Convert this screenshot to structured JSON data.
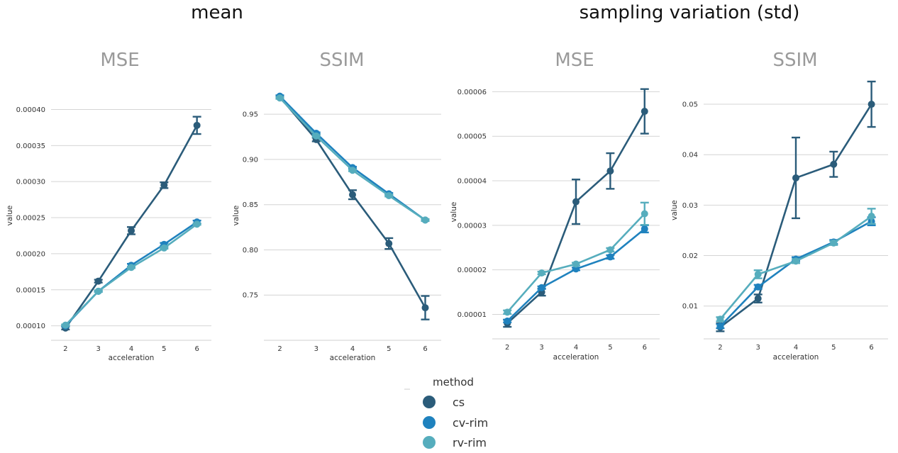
{
  "figure": {
    "group_titles": [
      "mean",
      "sampling variation (std)"
    ]
  },
  "legend": {
    "title": "method",
    "entries": [
      {
        "label": "cs",
        "color": "#2b5c7a"
      },
      {
        "label": "cv-rim",
        "color": "#1f82be"
      },
      {
        "label": "rv-rim",
        "color": "#56adbd"
      }
    ]
  },
  "chart_data": [
    {
      "type": "line",
      "title": "MSE",
      "group": "mean",
      "xlabel": "acceleration",
      "ylabel": "value",
      "categories": [
        2,
        3,
        4,
        5,
        6
      ],
      "ylim": [
        8e-05,
        0.000426
      ],
      "yticks": [
        "0.00010",
        "0.00015",
        "0.00020",
        "0.00025",
        "0.00030",
        "0.00035",
        "0.00040"
      ],
      "series": [
        {
          "name": "cs",
          "color": "#2b5c7a",
          "values": [
            9.7e-05,
            0.000162,
            0.000232,
            0.000295,
            0.000378
          ],
          "err": [
            2e-06,
            2e-06,
            5e-06,
            4e-06,
            1.2e-05
          ]
        },
        {
          "name": "cv-rim",
          "color": "#1f82be",
          "values": [
            0.0001,
            0.000148,
            0.000184,
            0.000213,
            0.000244
          ],
          "err": [
            1e-06,
            1e-06,
            2e-06,
            2e-06,
            2e-06
          ]
        },
        {
          "name": "rv-rim",
          "color": "#56adbd",
          "values": [
            0.000101,
            0.000148,
            0.000181,
            0.000208,
            0.000241
          ],
          "err": [
            1e-06,
            1e-06,
            1e-06,
            1e-06,
            1e-06
          ]
        }
      ]
    },
    {
      "type": "line",
      "title": "SSIM",
      "group": "mean",
      "xlabel": "acceleration",
      "ylabel": "value",
      "categories": [
        2,
        3,
        4,
        5,
        6
      ],
      "ylim": [
        0.7,
        0.976
      ],
      "yticks": [
        "0.75",
        "0.80",
        "0.85",
        "0.90",
        "0.95"
      ],
      "series": [
        {
          "name": "cs",
          "color": "#2b5c7a",
          "values": [
            0.969,
            0.922,
            0.861,
            0.807,
            0.736
          ],
          "err": [
            0.001,
            0.002,
            0.005,
            0.006,
            0.013
          ]
        },
        {
          "name": "cv-rim",
          "color": "#1f82be",
          "values": [
            0.97,
            0.929,
            0.891,
            0.862,
            0.833
          ],
          "err": [
            0.001,
            0.001,
            0.001,
            0.001,
            0.001
          ]
        },
        {
          "name": "rv-rim",
          "color": "#56adbd",
          "values": [
            0.968,
            0.926,
            0.888,
            0.86,
            0.833
          ],
          "err": [
            0.001,
            0.001,
            0.001,
            0.001,
            0.001
          ]
        }
      ]
    },
    {
      "type": "line",
      "title": "MSE",
      "group": "sampling variation (std)",
      "xlabel": "acceleration",
      "ylabel": "value",
      "categories": [
        2,
        3,
        4,
        5,
        6
      ],
      "ylim": [
        4.5e-06,
        6.15e-05
      ],
      "yticks": [
        "0.00001",
        "0.00002",
        "0.00003",
        "0.00004",
        "0.00005",
        "0.00006"
      ],
      "series": [
        {
          "name": "cs",
          "color": "#2b5c7a",
          "values": [
            8e-06,
            1.5e-05,
            3.53e-05,
            4.22e-05,
            5.56e-05
          ],
          "err": [
            8e-07,
            8e-07,
            5e-06,
            4e-06,
            5e-06
          ]
        },
        {
          "name": "cv-rim",
          "color": "#1f82be",
          "values": [
            8.5e-06,
            1.6e-05,
            2.02e-05,
            2.29e-05,
            2.92e-05
          ],
          "err": [
            3e-07,
            3e-07,
            3e-07,
            4e-07,
            8e-07
          ]
        },
        {
          "name": "rv-rim",
          "color": "#56adbd",
          "values": [
            1.05e-05,
            1.93e-05,
            2.13e-05,
            2.45e-05,
            3.26e-05
          ],
          "err": [
            4e-07,
            3e-07,
            3e-07,
            4e-07,
            2.5e-06
          ]
        }
      ]
    },
    {
      "type": "line",
      "title": "SSIM",
      "group": "sampling variation (std)",
      "xlabel": "acceleration",
      "ylabel": "value",
      "categories": [
        2,
        3,
        4,
        5,
        6
      ],
      "ylim": [
        0.0035,
        0.0545
      ],
      "yticks": [
        "0.01",
        "0.02",
        "0.03",
        "0.04",
        "0.05"
      ],
      "series": [
        {
          "name": "cs",
          "color": "#2b5c7a",
          "values": [
            0.0058,
            0.0115,
            0.0354,
            0.0381,
            0.05
          ],
          "err": [
            0.0008,
            0.0008,
            0.008,
            0.0025,
            0.0045
          ]
        },
        {
          "name": "cv-rim",
          "color": "#1f82be",
          "values": [
            0.006,
            0.0138,
            0.0193,
            0.0227,
            0.0268
          ],
          "err": [
            0.0004,
            0.0004,
            0.0004,
            0.0004,
            0.0008
          ]
        },
        {
          "name": "rv-rim",
          "color": "#56adbd",
          "values": [
            0.0074,
            0.0163,
            0.0189,
            0.0225,
            0.0278
          ],
          "err": [
            0.0004,
            0.0008,
            0.0004,
            0.0004,
            0.0015
          ]
        }
      ]
    }
  ]
}
